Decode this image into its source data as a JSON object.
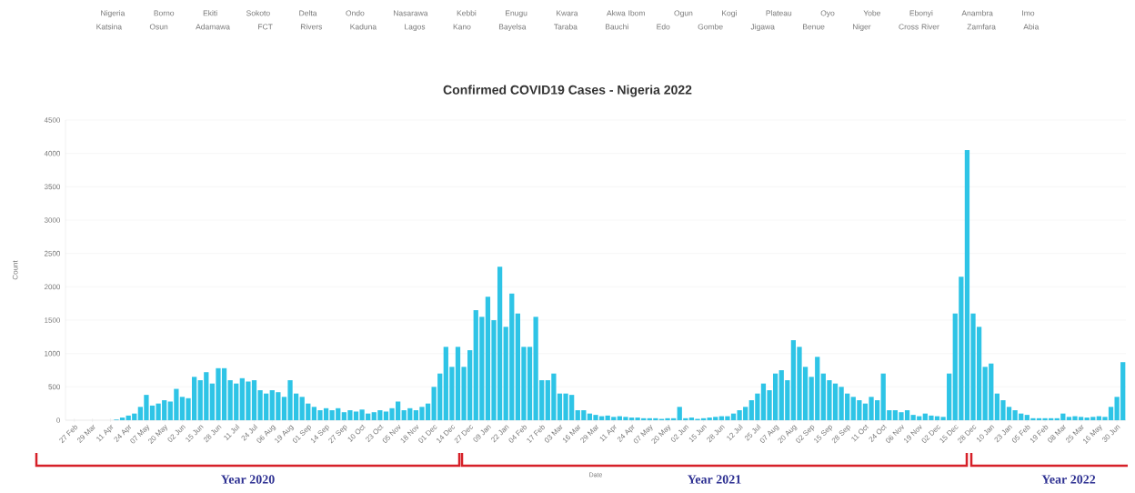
{
  "chart_data": {
    "type": "bar",
    "title": "Confirmed COVID19 Cases - Nigeria 2022",
    "xlabel": "Date",
    "ylabel": "Count",
    "annotations": [
      "Nigeria",
      "Borno",
      "Ekiti",
      "Sokoto",
      "Delta",
      "Ondo",
      "Nasarawa",
      "Kebbi",
      "Enugu",
      "Kwara",
      "Akwa Ibom",
      "Ogun",
      "Kogi",
      "Plateau",
      "Oyo",
      "Yobe",
      "Ebonyi",
      "Anambra",
      "Imo",
      "Katsina",
      "Osun",
      "Adamawa",
      "FCT",
      "Rivers",
      "Kaduna",
      "Lagos",
      "Kano",
      "Bayelsa",
      "Taraba",
      "Bauchi",
      "Edo",
      "Gombe",
      "Jigawa",
      "Benue",
      "Niger",
      "Cross River",
      "Zamfara",
      "Abia",
      "Year 2020",
      "Year 2021",
      "Year 2022"
    ],
    "categories": [
      "27 Feb",
      null,
      null,
      "29 Mar",
      null,
      null,
      "11 Apr",
      null,
      null,
      "24 Apr",
      null,
      null,
      "07 May",
      null,
      null,
      "20 May",
      null,
      null,
      "02 Jun",
      null,
      null,
      "15 Jun",
      null,
      null,
      "28 Jun",
      null,
      null,
      "11 Jul",
      null,
      null,
      "24 Jul",
      null,
      null,
      "06 Aug",
      null,
      null,
      "19 Aug",
      null,
      null,
      "01 Sep",
      null,
      null,
      "14 Sep",
      null,
      null,
      "27 Sep",
      null,
      null,
      "10 Oct",
      null,
      null,
      "23 Oct",
      null,
      null,
      "05 Nov",
      null,
      null,
      "18 Nov",
      null,
      null,
      "01 Dec",
      null,
      null,
      "14 Dec",
      null,
      null,
      "27 Dec",
      null,
      null,
      "09 Jan",
      null,
      null,
      "22 Jan",
      null,
      null,
      "04 Feb",
      null,
      null,
      "17 Feb",
      null,
      null,
      "03 Mar",
      null,
      null,
      "16 Mar",
      null,
      null,
      "29 Mar",
      null,
      null,
      "11 Apr",
      null,
      null,
      "24 Apr",
      null,
      null,
      "07 May",
      null,
      null,
      "20 May",
      null,
      null,
      "02 Jun",
      null,
      null,
      "15 Jun",
      null,
      null,
      "28 Jun",
      null,
      null,
      "12 Jul",
      null,
      null,
      "25 Jul",
      null,
      null,
      "07 Aug",
      null,
      null,
      "20 Aug",
      null,
      null,
      "02 Sep",
      null,
      null,
      "15 Sep",
      null,
      null,
      "28 Sep",
      null,
      null,
      "11 Oct",
      null,
      null,
      "24 Oct",
      null,
      null,
      "06 Nov",
      null,
      null,
      "19 Nov",
      null,
      null,
      "02 Dec",
      null,
      null,
      "15 Dec",
      null,
      null,
      "28 Dec",
      null,
      null,
      "10 Jan",
      null,
      null,
      "23 Jan",
      null,
      null,
      "05 Feb",
      null,
      null,
      "19 Feb",
      null,
      null,
      "08 Mar",
      null,
      null,
      "25 Mar",
      null,
      null,
      "16 May",
      null,
      null,
      "30 Jun",
      null
    ],
    "values": [
      0,
      0,
      0,
      0,
      0,
      0,
      0,
      10,
      40,
      70,
      100,
      200,
      380,
      220,
      250,
      300,
      280,
      470,
      350,
      330,
      650,
      600,
      720,
      550,
      780,
      780,
      600,
      550,
      630,
      580,
      600,
      450,
      400,
      450,
      420,
      350,
      600,
      400,
      350,
      250,
      200,
      150,
      180,
      150,
      180,
      120,
      150,
      130,
      160,
      100,
      120,
      150,
      130,
      180,
      280,
      150,
      180,
      150,
      200,
      250,
      500,
      700,
      1100,
      800,
      1100,
      800,
      1050,
      1650,
      1550,
      1850,
      1500,
      2300,
      1400,
      1900,
      1600,
      1100,
      1100,
      1550,
      600,
      600,
      700,
      400,
      400,
      380,
      150,
      150,
      100,
      80,
      60,
      70,
      50,
      60,
      50,
      40,
      40,
      30,
      30,
      30,
      20,
      30,
      30,
      200,
      30,
      40,
      20,
      30,
      40,
      50,
      60,
      60,
      100,
      150,
      200,
      300,
      400,
      550,
      450,
      700,
      750,
      600,
      1200,
      1100,
      800,
      650,
      950,
      700,
      600,
      550,
      500,
      400,
      350,
      300,
      250,
      350,
      300,
      700,
      150,
      150,
      120,
      150,
      80,
      60,
      100,
      70,
      60,
      50,
      700,
      1600,
      2150,
      4050,
      1600,
      1400,
      800,
      850,
      400,
      300,
      200,
      150,
      100,
      80,
      30,
      30,
      30,
      30,
      30,
      100,
      50,
      60,
      50,
      40,
      50,
      60,
      50,
      200,
      350,
      870
    ],
    "color": "#2ec4e6",
    "ylim": [
      0,
      4500
    ],
    "yticks": [
      0,
      500,
      1000,
      1500,
      2000,
      2500,
      3000,
      3500,
      4000,
      4500
    ],
    "grid": "y"
  }
}
